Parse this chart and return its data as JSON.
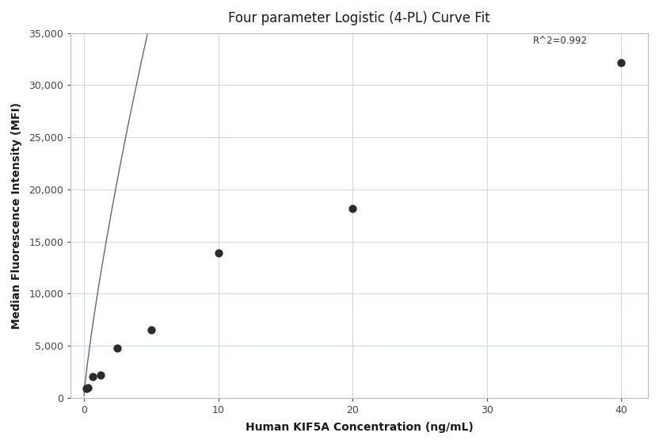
{
  "title": "Four parameter Logistic (4-PL) Curve Fit",
  "xlabel": "Human KIF5A Concentration (ng/mL)",
  "ylabel": "Median Fluorescence Intensity (MFI)",
  "scatter_x": [
    0.16,
    0.31,
    0.63,
    1.25,
    2.5,
    5.0,
    10.0,
    20.0,
    40.0
  ],
  "scatter_y": [
    900,
    1000,
    2000,
    2200,
    4800,
    6500,
    13900,
    18200,
    32200
  ],
  "xlim": [
    -1,
    42
  ],
  "ylim": [
    0,
    35000
  ],
  "yticks": [
    0,
    5000,
    10000,
    15000,
    20000,
    25000,
    30000,
    35000
  ],
  "xticks": [
    0,
    10,
    20,
    30,
    40
  ],
  "r_squared_text": "R^2=0.992",
  "r_squared_x": 37.5,
  "r_squared_y": 33800,
  "dot_color": "#2b2b2b",
  "dot_size": 55,
  "line_color": "#666666",
  "grid_color": "#c8d8e8",
  "background_color": "#ffffff",
  "title_fontsize": 12,
  "axis_label_fontsize": 10,
  "tick_fontsize": 9
}
